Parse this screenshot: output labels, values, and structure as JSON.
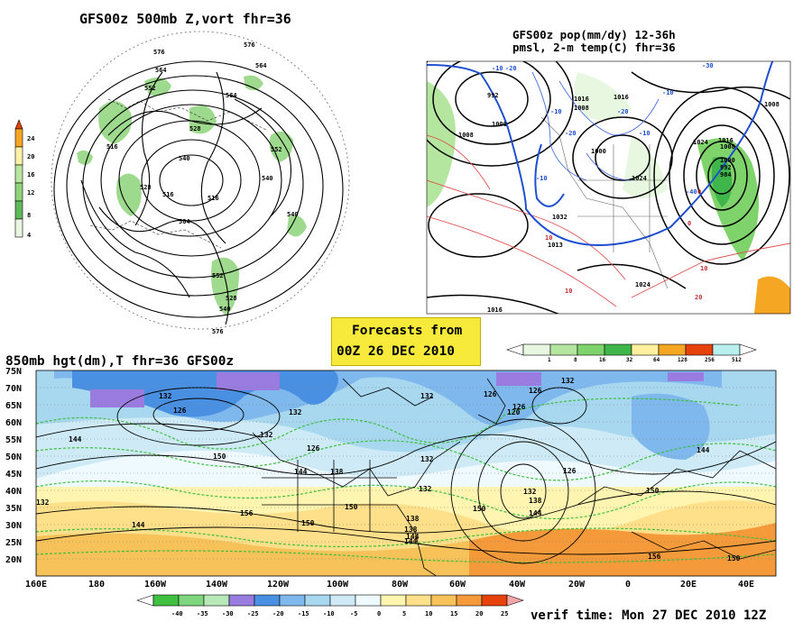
{
  "panel_500mb": {
    "title": "GFS00z  500mb Z,vort    fhr=36",
    "colorbar_ticks": [
      "24",
      "20",
      "16",
      "12",
      "8",
      "4"
    ],
    "colorbar_colors": [
      "#e8420c",
      "#f5a623",
      "#fff2a8",
      "#b8e6a0",
      "#8ed47a",
      "#5fb85a",
      "#e8f5e0"
    ],
    "height_labels": [
      "576",
      "576",
      "564",
      "564",
      "552",
      "552",
      "540",
      "540",
      "528",
      "528",
      "516",
      "516",
      "504",
      "564",
      "552",
      "540",
      "528",
      "576",
      "516",
      "540"
    ]
  },
  "panel_pmsl": {
    "title_line1": "GFS00z pop(mm/dy) 12-36h",
    "title_line2": "pmsl, 2-m temp(C)  fhr=36",
    "pressure_labels": [
      "992",
      "1008",
      "1016",
      "1000",
      "1008",
      "1016",
      "1024",
      "1008",
      "1000",
      "1032",
      "1024",
      "1016",
      "1013",
      "1024",
      "1016",
      "1008",
      "1000",
      "992",
      "984"
    ],
    "temp_labels": [
      "-10",
      "-20",
      "-10",
      "-20",
      "-10",
      "-10",
      "0",
      "10",
      "-10",
      "10",
      "20",
      "-20",
      "-40",
      "-30",
      "0",
      "10"
    ],
    "colorbar_ticks": [
      "1",
      "8",
      "16",
      "32",
      "64",
      "128",
      "256",
      "512"
    ],
    "colorbar_colors": [
      "#e8f8e0",
      "#b5e6a0",
      "#7fd36b",
      "#3fb64a",
      "#fff0a0",
      "#f5a623",
      "#e8420c",
      "#b8f0f0"
    ]
  },
  "forecast_box": {
    "line1": "Forecasts from",
    "line2": "00Z 26 DEC 2010"
  },
  "panel_850mb": {
    "title": "850mb hgt(dm),T  fhr=36 GFS00z",
    "lat_labels": [
      "75N",
      "70N",
      "65N",
      "60N",
      "55N",
      "50N",
      "45N",
      "40N",
      "35N",
      "30N",
      "25N",
      "20N"
    ],
    "lon_labels": [
      "160E",
      "180",
      "160W",
      "140W",
      "120W",
      "100W",
      "80W",
      "60W",
      "40W",
      "20W",
      "0",
      "20E",
      "40E"
    ],
    "height_labels": [
      "132",
      "126",
      "132",
      "132",
      "144",
      "126",
      "132",
      "144",
      "138",
      "132",
      "126",
      "126",
      "132",
      "120",
      "126",
      "132",
      "138",
      "150",
      "150",
      "144",
      "138",
      "144",
      "150",
      "156",
      "144",
      "150",
      "156",
      "132",
      "150",
      "144",
      "150",
      "132",
      "138",
      "144",
      "126"
    ],
    "colorbar_ticks": [
      "-40",
      "-35",
      "-30",
      "-25",
      "-20",
      "-15",
      "-10",
      "-5",
      "0",
      "5",
      "10",
      "15",
      "20",
      "25"
    ],
    "colorbar_colors": [
      "#3fc03f",
      "#7ed67e",
      "#b7e8b7",
      "#9a7ce0",
      "#4a90e2",
      "#7fb8ec",
      "#a8d8f0",
      "#cdeaf6",
      "#eefaff",
      "#fff5b0",
      "#ffe08a",
      "#f7c25a",
      "#f59a3a",
      "#e8420c",
      "#f4a6a6"
    ]
  },
  "verif_time": "verif time: Mon 27 DEC 2010 12Z"
}
